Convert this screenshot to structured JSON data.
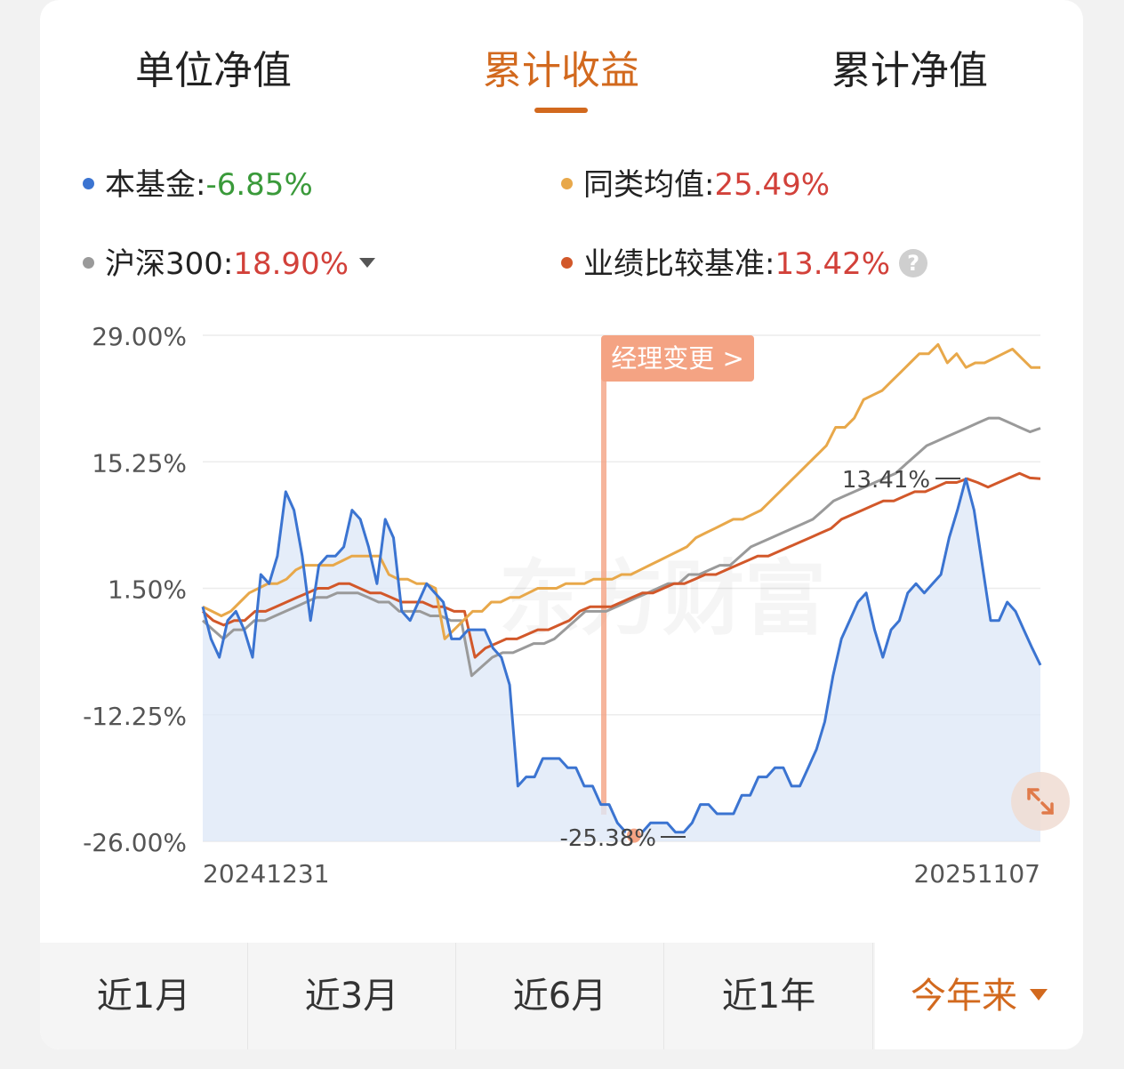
{
  "tabs": [
    {
      "label": "单位净值"
    },
    {
      "label": "累计收益"
    },
    {
      "label": "累计净值"
    }
  ],
  "legend": {
    "fund": {
      "name": "本基金:",
      "value": "-6.85%",
      "color": "#3b74d1",
      "value_color": "#3a9a3a"
    },
    "peer": {
      "name": "同类均值:",
      "value": "25.49%",
      "color": "#e8a84a",
      "value_color": "#d2413a"
    },
    "index": {
      "name": "沪深300:",
      "value": "18.90%",
      "color": "#9a9a9a",
      "value_color": "#d2413a"
    },
    "benchmark": {
      "name": "业绩比较基准:",
      "value": "13.42%",
      "color": "#d2582a",
      "value_color": "#d2413a"
    }
  },
  "help_icon": "?",
  "chart_data": {
    "type": "line",
    "y_ticks": [
      "29.00%",
      "15.25%",
      "1.50%",
      "-12.25%",
      "-26.00%"
    ],
    "y_tick_values": [
      29.0,
      15.25,
      1.5,
      -12.25,
      -26.0
    ],
    "ylim": [
      -26.0,
      29.0
    ],
    "x_start_label": "20241231",
    "x_end_label": "20251107",
    "watermark": "东方财富",
    "manager_change_label": "经理变更 >",
    "min_annotation": "-25.38%",
    "max_annotation": "13.41%",
    "series": [
      {
        "key": "fund",
        "color": "#3b74d1",
        "fill": true,
        "values": [
          -0.5,
          -4,
          -6,
          -2,
          -1,
          -3,
          -6,
          3,
          2,
          5,
          12,
          10,
          5,
          -2,
          4,
          5,
          5,
          6,
          10,
          9,
          6,
          2,
          9,
          7,
          -1,
          -2,
          0,
          2,
          1,
          0,
          -4,
          -4,
          -3,
          -3,
          -3,
          -5,
          -6,
          -9,
          -20,
          -19,
          -19,
          -17,
          -17,
          -17,
          -18,
          -18,
          -20,
          -20,
          -22,
          -22,
          -24,
          -25,
          -25.38,
          -25,
          -24,
          -24,
          -24,
          -25,
          -25,
          -24,
          -22,
          -22,
          -23,
          -23,
          -23,
          -21,
          -21,
          -19,
          -19,
          -18,
          -18,
          -20,
          -20,
          -18,
          -16,
          -13,
          -8,
          -4,
          -2,
          0,
          1,
          -3,
          -6,
          -3,
          -2,
          1,
          2,
          1,
          2,
          3,
          7,
          10,
          13.41,
          10,
          4,
          -2,
          -2,
          0,
          -1,
          -3,
          -5,
          -6.85
        ],
        "name": ""
      },
      {
        "key": "peer",
        "color": "#e8a84a",
        "fill": false,
        "values": [
          -0.5,
          -1,
          -1.5,
          -1,
          0,
          1,
          1.5,
          2,
          2,
          2.5,
          3.5,
          4,
          4,
          4,
          4,
          4.5,
          5,
          5,
          5,
          5,
          3,
          2.5,
          2.5,
          2,
          2,
          1.5,
          -4,
          -3,
          -2,
          -1,
          -1,
          0,
          0,
          0.5,
          0.5,
          1,
          1.5,
          1.5,
          1.5,
          2,
          2,
          2,
          2.5,
          2.5,
          2.5,
          3,
          3,
          3.5,
          4,
          4.5,
          5,
          5.5,
          6,
          7,
          7.5,
          8,
          8.5,
          9,
          9,
          9.5,
          10,
          11,
          12,
          13,
          14,
          15,
          16,
          17,
          19,
          19,
          20,
          22,
          22.5,
          23,
          24,
          25,
          26,
          27,
          27,
          28,
          26,
          27,
          25.5,
          26,
          26,
          26.5,
          27,
          27.5,
          26.5,
          25.5,
          25.49
        ],
        "name": ""
      },
      {
        "key": "index",
        "color": "#9a9a9a",
        "fill": false,
        "values": [
          -2,
          -3,
          -4,
          -3,
          -3,
          -2,
          -2,
          -1.5,
          -1,
          -0.5,
          0,
          0.5,
          0.5,
          1,
          1,
          1,
          0.5,
          0,
          0,
          -1,
          -1,
          -1,
          -1.5,
          -1.5,
          -2,
          -2,
          -8,
          -7,
          -6,
          -5.5,
          -5.5,
          -5,
          -4.5,
          -4.5,
          -4,
          -3,
          -2,
          -1,
          -1,
          -1,
          -0.5,
          0,
          0.5,
          1,
          1.5,
          2,
          2,
          3,
          3,
          3.5,
          4,
          4,
          5,
          6,
          6.5,
          7,
          7.5,
          8,
          8.5,
          9,
          10,
          11,
          11.5,
          12,
          12.5,
          13,
          13.5,
          14,
          15,
          16,
          17,
          17.5,
          18,
          18.5,
          19,
          19.5,
          20,
          20,
          19.5,
          19,
          18.5,
          18.9
        ],
        "name": ""
      },
      {
        "key": "benchmark",
        "color": "#d2582a",
        "fill": false,
        "values": [
          -1,
          -2,
          -2.5,
          -2,
          -2,
          -1,
          -1,
          -0.5,
          0,
          0.5,
          1,
          1.5,
          1.5,
          2,
          2,
          1.5,
          1,
          1,
          0.5,
          0,
          0,
          0,
          -0.5,
          -0.5,
          -1,
          -1,
          -6,
          -5,
          -4.5,
          -4,
          -4,
          -3.5,
          -3,
          -3,
          -2.5,
          -2,
          -1,
          -0.5,
          -0.5,
          -0.5,
          0,
          0.5,
          1,
          1,
          1.5,
          2,
          2,
          2.5,
          3,
          3,
          3.5,
          4,
          4.5,
          5,
          5,
          5.5,
          6,
          6.5,
          7,
          7.5,
          8,
          9,
          9.5,
          10,
          10.5,
          11,
          11,
          11.5,
          12,
          12,
          12.5,
          13,
          13,
          13.41,
          13,
          12.5,
          13,
          13.5,
          14,
          13.5,
          13.42
        ],
        "name": ""
      }
    ]
  },
  "periods": [
    {
      "label": "近1月"
    },
    {
      "label": "近3月"
    },
    {
      "label": "近6月"
    },
    {
      "label": "近1年"
    },
    {
      "label": "今年来"
    }
  ]
}
